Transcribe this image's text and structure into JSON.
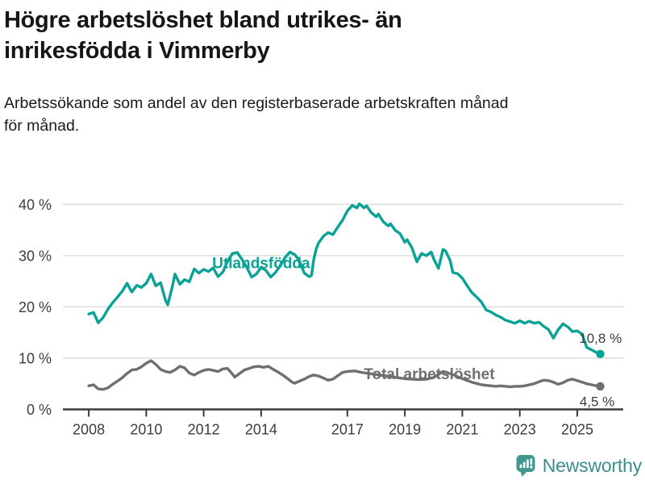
{
  "header": {
    "title_lines": [
      "Högre arbetslöshet bland utrikes- än",
      "inrikesfödda i Vimmerby"
    ],
    "subtitle_lines": [
      "Arbetssökande som andel av den registerbaserade arbetskraften månad",
      "för månad."
    ]
  },
  "footer": {
    "brand": "Newsworthy",
    "logo_icon": "bar-chart-speech-bubble-icon",
    "brand_text_color": "#3a8f8a",
    "icon_color": "#41968f"
  },
  "chart_data": {
    "type": "line",
    "title": "Högre arbetslöshet bland utrikes- än inrikesfödda i Vimmerby",
    "subtitle": "Arbetssökande som andel av den registerbaserade arbetskraften månad för månad.",
    "xlabel": "",
    "ylabel": "",
    "unit": "%",
    "grid": true,
    "legend_position": "inline-labels",
    "xlim": [
      2007.1,
      2026.6
    ],
    "ylim": [
      0,
      40
    ],
    "x_ticks": [
      2008,
      2010,
      2012,
      2014,
      2017,
      2019,
      2021,
      2023,
      2025
    ],
    "y_ticks": [
      {
        "value": 0,
        "label": "0 %"
      },
      {
        "value": 10,
        "label": "10 %"
      },
      {
        "value": 20,
        "label": "20 %"
      },
      {
        "value": 30,
        "label": "30 %"
      },
      {
        "value": 40,
        "label": "40 %"
      }
    ],
    "colors": {
      "grid": "#d9d9d9",
      "axis": "#3a3a3a",
      "tick_text": "#3d3d3d"
    },
    "series": [
      {
        "name": "Utlandsfödda",
        "color": "#0aa296",
        "end_label": "10,8 %",
        "end_value": 10.8,
        "label_pos": [
          2014.0,
          28.6
        ],
        "end_label_pos": [
          2026.55,
          13.9
        ],
        "points": [
          [
            2008.0,
            18.6
          ],
          [
            2008.17,
            18.9
          ],
          [
            2008.33,
            16.9
          ],
          [
            2008.5,
            17.9
          ],
          [
            2008.67,
            19.6
          ],
          [
            2008.83,
            20.8
          ],
          [
            2009.0,
            21.9
          ],
          [
            2009.17,
            23.1
          ],
          [
            2009.33,
            24.6
          ],
          [
            2009.5,
            22.9
          ],
          [
            2009.67,
            24.2
          ],
          [
            2009.83,
            23.8
          ],
          [
            2010.0,
            24.6
          ],
          [
            2010.17,
            26.4
          ],
          [
            2010.33,
            24.1
          ],
          [
            2010.5,
            24.7
          ],
          [
            2010.67,
            21.3
          ],
          [
            2010.75,
            20.4
          ],
          [
            2010.92,
            24.2
          ],
          [
            2011.0,
            26.4
          ],
          [
            2011.17,
            24.4
          ],
          [
            2011.33,
            25.3
          ],
          [
            2011.5,
            24.9
          ],
          [
            2011.67,
            27.4
          ],
          [
            2011.83,
            26.6
          ],
          [
            2012.0,
            27.3
          ],
          [
            2012.17,
            26.9
          ],
          [
            2012.33,
            27.6
          ],
          [
            2012.5,
            25.9
          ],
          [
            2012.67,
            26.8
          ],
          [
            2012.83,
            28.9
          ],
          [
            2013.0,
            30.4
          ],
          [
            2013.17,
            30.6
          ],
          [
            2013.33,
            29.3
          ],
          [
            2013.5,
            27.7
          ],
          [
            2013.67,
            25.8
          ],
          [
            2013.83,
            26.4
          ],
          [
            2014.0,
            27.7
          ],
          [
            2014.17,
            27.1
          ],
          [
            2014.33,
            25.8
          ],
          [
            2014.5,
            26.7
          ],
          [
            2014.67,
            28.1
          ],
          [
            2014.83,
            29.6
          ],
          [
            2015.0,
            30.7
          ],
          [
            2015.17,
            30.2
          ],
          [
            2015.33,
            29.0
          ],
          [
            2015.5,
            26.6
          ],
          [
            2015.67,
            25.9
          ],
          [
            2015.75,
            26.1
          ],
          [
            2015.83,
            29.2
          ],
          [
            2015.92,
            31.4
          ],
          [
            2016.0,
            32.5
          ],
          [
            2016.17,
            33.8
          ],
          [
            2016.33,
            34.5
          ],
          [
            2016.5,
            34.1
          ],
          [
            2016.67,
            35.6
          ],
          [
            2016.83,
            36.9
          ],
          [
            2017.0,
            38.7
          ],
          [
            2017.17,
            39.8
          ],
          [
            2017.33,
            39.3
          ],
          [
            2017.42,
            40.1
          ],
          [
            2017.58,
            39.3
          ],
          [
            2017.67,
            39.7
          ],
          [
            2017.83,
            38.4
          ],
          [
            2018.0,
            37.6
          ],
          [
            2018.08,
            38.1
          ],
          [
            2018.25,
            36.6
          ],
          [
            2018.42,
            35.8
          ],
          [
            2018.5,
            36.2
          ],
          [
            2018.67,
            34.9
          ],
          [
            2018.83,
            34.3
          ],
          [
            2019.0,
            32.6
          ],
          [
            2019.08,
            33.1
          ],
          [
            2019.25,
            31.5
          ],
          [
            2019.42,
            28.8
          ],
          [
            2019.58,
            30.4
          ],
          [
            2019.75,
            30.0
          ],
          [
            2019.92,
            30.7
          ],
          [
            2020.0,
            29.4
          ],
          [
            2020.17,
            27.5
          ],
          [
            2020.33,
            31.2
          ],
          [
            2020.42,
            30.9
          ],
          [
            2020.58,
            29.0
          ],
          [
            2020.67,
            26.7
          ],
          [
            2020.83,
            26.5
          ],
          [
            2021.0,
            25.6
          ],
          [
            2021.17,
            24.1
          ],
          [
            2021.33,
            22.8
          ],
          [
            2021.5,
            21.9
          ],
          [
            2021.67,
            20.9
          ],
          [
            2021.83,
            19.4
          ],
          [
            2022.0,
            19.0
          ],
          [
            2022.17,
            18.4
          ],
          [
            2022.33,
            18.0
          ],
          [
            2022.5,
            17.4
          ],
          [
            2022.67,
            17.1
          ],
          [
            2022.83,
            16.8
          ],
          [
            2023.0,
            17.3
          ],
          [
            2023.17,
            16.8
          ],
          [
            2023.33,
            17.2
          ],
          [
            2023.5,
            16.8
          ],
          [
            2023.67,
            17.0
          ],
          [
            2023.83,
            16.2
          ],
          [
            2024.0,
            15.6
          ],
          [
            2024.17,
            13.9
          ],
          [
            2024.33,
            15.5
          ],
          [
            2024.5,
            16.7
          ],
          [
            2024.67,
            16.1
          ],
          [
            2024.83,
            15.2
          ],
          [
            2025.0,
            15.3
          ],
          [
            2025.17,
            14.7
          ],
          [
            2025.33,
            12.1
          ],
          [
            2025.5,
            11.6
          ],
          [
            2025.67,
            11.1
          ],
          [
            2025.8,
            10.8
          ]
        ]
      },
      {
        "name": "Total arbetslöshet",
        "color": "#6f6f6f",
        "end_label": "4,5 %",
        "end_value": 4.5,
        "label_pos": [
          2019.85,
          7.0
        ],
        "end_label_pos": [
          2026.3,
          1.6
        ],
        "points": [
          [
            2008.0,
            4.6
          ],
          [
            2008.17,
            4.8
          ],
          [
            2008.33,
            4.0
          ],
          [
            2008.5,
            3.9
          ],
          [
            2008.67,
            4.2
          ],
          [
            2008.83,
            4.9
          ],
          [
            2009.0,
            5.5
          ],
          [
            2009.17,
            6.2
          ],
          [
            2009.33,
            7.0
          ],
          [
            2009.5,
            7.7
          ],
          [
            2009.67,
            7.8
          ],
          [
            2009.83,
            8.3
          ],
          [
            2010.0,
            9.0
          ],
          [
            2010.17,
            9.5
          ],
          [
            2010.33,
            8.8
          ],
          [
            2010.5,
            7.8
          ],
          [
            2010.67,
            7.4
          ],
          [
            2010.83,
            7.2
          ],
          [
            2011.0,
            7.7
          ],
          [
            2011.17,
            8.4
          ],
          [
            2011.33,
            8.1
          ],
          [
            2011.5,
            7.1
          ],
          [
            2011.67,
            6.7
          ],
          [
            2011.83,
            7.2
          ],
          [
            2012.0,
            7.6
          ],
          [
            2012.17,
            7.8
          ],
          [
            2012.33,
            7.6
          ],
          [
            2012.5,
            7.4
          ],
          [
            2012.67,
            7.9
          ],
          [
            2012.83,
            8.0
          ],
          [
            2013.0,
            6.9
          ],
          [
            2013.08,
            6.3
          ],
          [
            2013.25,
            7.0
          ],
          [
            2013.42,
            7.7
          ],
          [
            2013.58,
            8.0
          ],
          [
            2013.75,
            8.3
          ],
          [
            2013.92,
            8.4
          ],
          [
            2014.08,
            8.2
          ],
          [
            2014.25,
            8.4
          ],
          [
            2014.42,
            7.8
          ],
          [
            2014.58,
            7.3
          ],
          [
            2014.75,
            6.7
          ],
          [
            2014.92,
            6.0
          ],
          [
            2015.08,
            5.3
          ],
          [
            2015.17,
            5.1
          ],
          [
            2015.33,
            5.5
          ],
          [
            2015.5,
            5.9
          ],
          [
            2015.67,
            6.4
          ],
          [
            2015.83,
            6.7
          ],
          [
            2016.0,
            6.5
          ],
          [
            2016.17,
            6.1
          ],
          [
            2016.33,
            5.7
          ],
          [
            2016.5,
            5.9
          ],
          [
            2016.67,
            6.6
          ],
          [
            2016.83,
            7.2
          ],
          [
            2017.0,
            7.4
          ],
          [
            2017.25,
            7.5
          ],
          [
            2017.5,
            7.2
          ],
          [
            2017.75,
            7.0
          ],
          [
            2018.0,
            6.8
          ],
          [
            2018.5,
            6.4
          ],
          [
            2019.0,
            6.0
          ],
          [
            2019.5,
            5.8
          ],
          [
            2019.75,
            5.9
          ],
          [
            2020.0,
            6.2
          ],
          [
            2020.33,
            7.4
          ],
          [
            2020.67,
            6.8
          ],
          [
            2021.0,
            6.0
          ],
          [
            2021.33,
            5.3
          ],
          [
            2021.67,
            4.8
          ],
          [
            2022.0,
            4.6
          ],
          [
            2022.17,
            4.5
          ],
          [
            2022.33,
            4.6
          ],
          [
            2022.5,
            4.5
          ],
          [
            2022.67,
            4.4
          ],
          [
            2022.83,
            4.5
          ],
          [
            2023.0,
            4.5
          ],
          [
            2023.17,
            4.6
          ],
          [
            2023.33,
            4.8
          ],
          [
            2023.5,
            5.0
          ],
          [
            2023.67,
            5.4
          ],
          [
            2023.83,
            5.7
          ],
          [
            2024.0,
            5.6
          ],
          [
            2024.17,
            5.3
          ],
          [
            2024.33,
            4.9
          ],
          [
            2024.5,
            5.2
          ],
          [
            2024.67,
            5.7
          ],
          [
            2024.83,
            5.9
          ],
          [
            2025.0,
            5.6
          ],
          [
            2025.17,
            5.3
          ],
          [
            2025.33,
            5.0
          ],
          [
            2025.5,
            4.8
          ],
          [
            2025.67,
            4.6
          ],
          [
            2025.8,
            4.5
          ]
        ]
      }
    ]
  }
}
